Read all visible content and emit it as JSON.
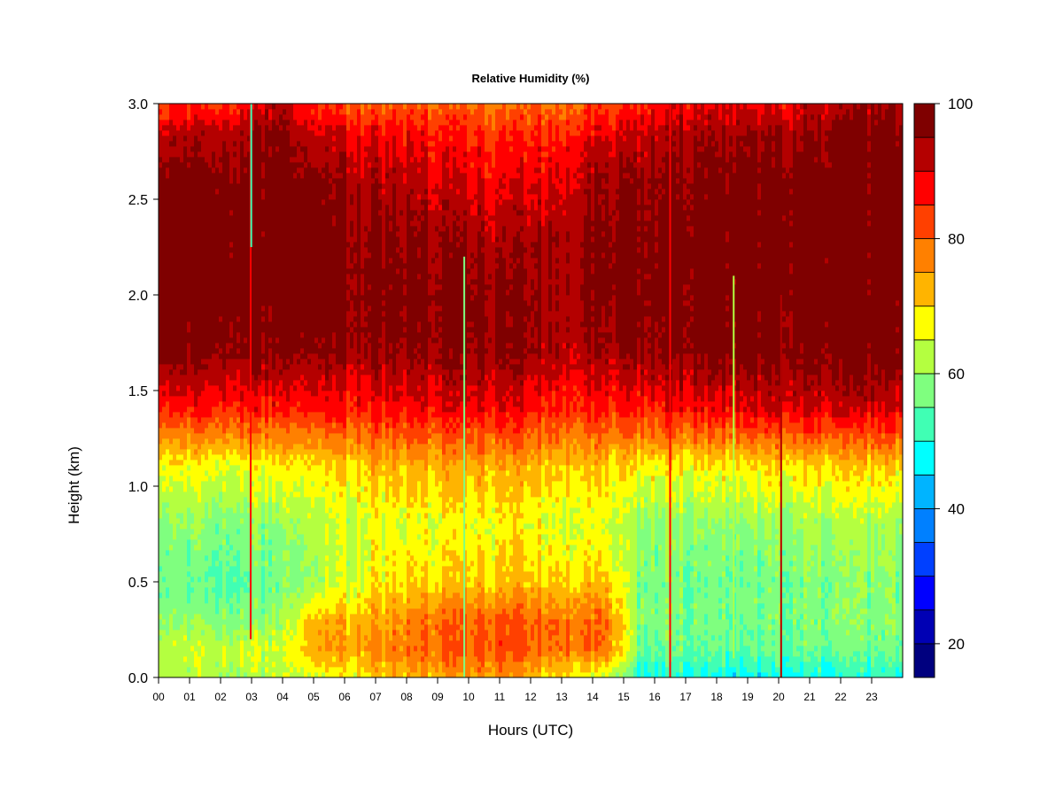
{
  "chart_data": {
    "type": "heatmap",
    "title": "Relative Humidity (%)",
    "xlabel": "Hours (UTC)",
    "ylabel": "Height (km)",
    "xlim": [
      0,
      24
    ],
    "ylim": [
      0.0,
      3.0
    ],
    "x_ticks": [
      "00",
      "01",
      "02",
      "03",
      "04",
      "05",
      "06",
      "07",
      "08",
      "09",
      "10",
      "11",
      "12",
      "13",
      "14",
      "15",
      "16",
      "17",
      "18",
      "19",
      "20",
      "21",
      "22",
      "23"
    ],
    "y_ticks": [
      "0.0",
      "0.5",
      "1.0",
      "1.5",
      "2.0",
      "2.5",
      "3.0"
    ],
    "colorbar": {
      "range": [
        15,
        100
      ],
      "ticks": [
        "20",
        "40",
        "60",
        "80",
        "100"
      ],
      "levels": [
        {
          "from": 15,
          "to": 20,
          "color": "#00007f"
        },
        {
          "from": 20,
          "to": 25,
          "color": "#0000b4"
        },
        {
          "from": 25,
          "to": 30,
          "color": "#0000ff"
        },
        {
          "from": 30,
          "to": 35,
          "color": "#0040ff"
        },
        {
          "from": 35,
          "to": 40,
          "color": "#0080ff"
        },
        {
          "from": 40,
          "to": 45,
          "color": "#00b4ff"
        },
        {
          "from": 45,
          "to": 50,
          "color": "#00ffff"
        },
        {
          "from": 50,
          "to": 55,
          "color": "#40ffb4"
        },
        {
          "from": 55,
          "to": 60,
          "color": "#7fff7f"
        },
        {
          "from": 60,
          "to": 65,
          "color": "#b4ff40"
        },
        {
          "from": 65,
          "to": 70,
          "color": "#ffff00"
        },
        {
          "from": 70,
          "to": 75,
          "color": "#ffb400"
        },
        {
          "from": 75,
          "to": 80,
          "color": "#ff8000"
        },
        {
          "from": 80,
          "to": 85,
          "color": "#ff4000"
        },
        {
          "from": 85,
          "to": 90,
          "color": "#ff0000"
        },
        {
          "from": 90,
          "to": 95,
          "color": "#b40000"
        },
        {
          "from": 95,
          "to": 100,
          "color": "#7f0000"
        }
      ]
    },
    "field_keyframes": {
      "heights_km": [
        0.0,
        0.15,
        0.3,
        0.5,
        0.8,
        1.1,
        1.4,
        1.7,
        2.0,
        2.3,
        2.6,
        2.85,
        3.0
      ],
      "profiles": [
        {
          "hour": 0.0,
          "rh": [
            60,
            62,
            58,
            55,
            58,
            66,
            84,
            97,
            99,
            99,
            97,
            90,
            82
          ]
        },
        {
          "hour": 2.0,
          "rh": [
            62,
            64,
            58,
            54,
            58,
            66,
            86,
            97,
            99,
            99,
            98,
            93,
            84
          ]
        },
        {
          "hour": 4.0,
          "rh": [
            63,
            65,
            60,
            57,
            60,
            68,
            86,
            97,
            99,
            99,
            99,
            97,
            92
          ]
        },
        {
          "hour": 5.0,
          "rh": [
            64,
            74,
            72,
            60,
            62,
            68,
            86,
            96,
            98,
            98,
            96,
            90,
            84
          ]
        },
        {
          "hour": 7.0,
          "rh": [
            70,
            76,
            73,
            68,
            66,
            72,
            86,
            95,
            97,
            96,
            93,
            88,
            80
          ]
        },
        {
          "hour": 9.0,
          "rh": [
            73,
            80,
            79,
            70,
            66,
            72,
            88,
            96,
            97,
            95,
            90,
            86,
            80
          ]
        },
        {
          "hour": 11.0,
          "rh": [
            75,
            82,
            81,
            71,
            67,
            73,
            88,
            96,
            96,
            93,
            88,
            84,
            78
          ]
        },
        {
          "hour": 13.0,
          "rh": [
            70,
            80,
            80,
            72,
            66,
            72,
            86,
            94,
            95,
            95,
            91,
            86,
            80
          ]
        },
        {
          "hour": 14.5,
          "rh": [
            62,
            77,
            78,
            70,
            64,
            70,
            84,
            93,
            96,
            96,
            94,
            88,
            82
          ]
        },
        {
          "hour": 15.5,
          "rh": [
            49,
            57,
            58,
            58,
            60,
            68,
            86,
            96,
            98,
            98,
            96,
            91,
            86
          ]
        },
        {
          "hour": 18.0,
          "rh": [
            48,
            55,
            57,
            56,
            59,
            68,
            88,
            98,
            99,
            99,
            98,
            95,
            90
          ]
        },
        {
          "hour": 20.0,
          "rh": [
            48,
            55,
            57,
            57,
            60,
            69,
            90,
            98,
            99,
            99,
            98,
            94,
            88
          ]
        },
        {
          "hour": 22.0,
          "rh": [
            49,
            56,
            58,
            58,
            61,
            70,
            90,
            98,
            99,
            99,
            99,
            97,
            93
          ]
        },
        {
          "hour": 24.0,
          "rh": [
            50,
            56,
            58,
            58,
            61,
            70,
            90,
            98,
            99,
            99,
            99,
            97,
            94
          ]
        }
      ],
      "spikes": [
        {
          "hour": 2.97,
          "from_km": 0.2,
          "to_km": 3.0,
          "rh": 88
        },
        {
          "hour": 2.99,
          "from_km": 2.25,
          "to_km": 3.0,
          "rh": 52
        },
        {
          "hour": 9.86,
          "from_km": 0.0,
          "to_km": 2.2,
          "rh": 55
        },
        {
          "hour": 16.5,
          "from_km": 0.0,
          "to_km": 3.0,
          "rh": 86
        },
        {
          "hour": 18.55,
          "from_km": 0.1,
          "to_km": 2.1,
          "rh": 62
        },
        {
          "hour": 20.08,
          "from_km": 0.0,
          "to_km": 2.0,
          "rh": 90
        }
      ]
    }
  }
}
